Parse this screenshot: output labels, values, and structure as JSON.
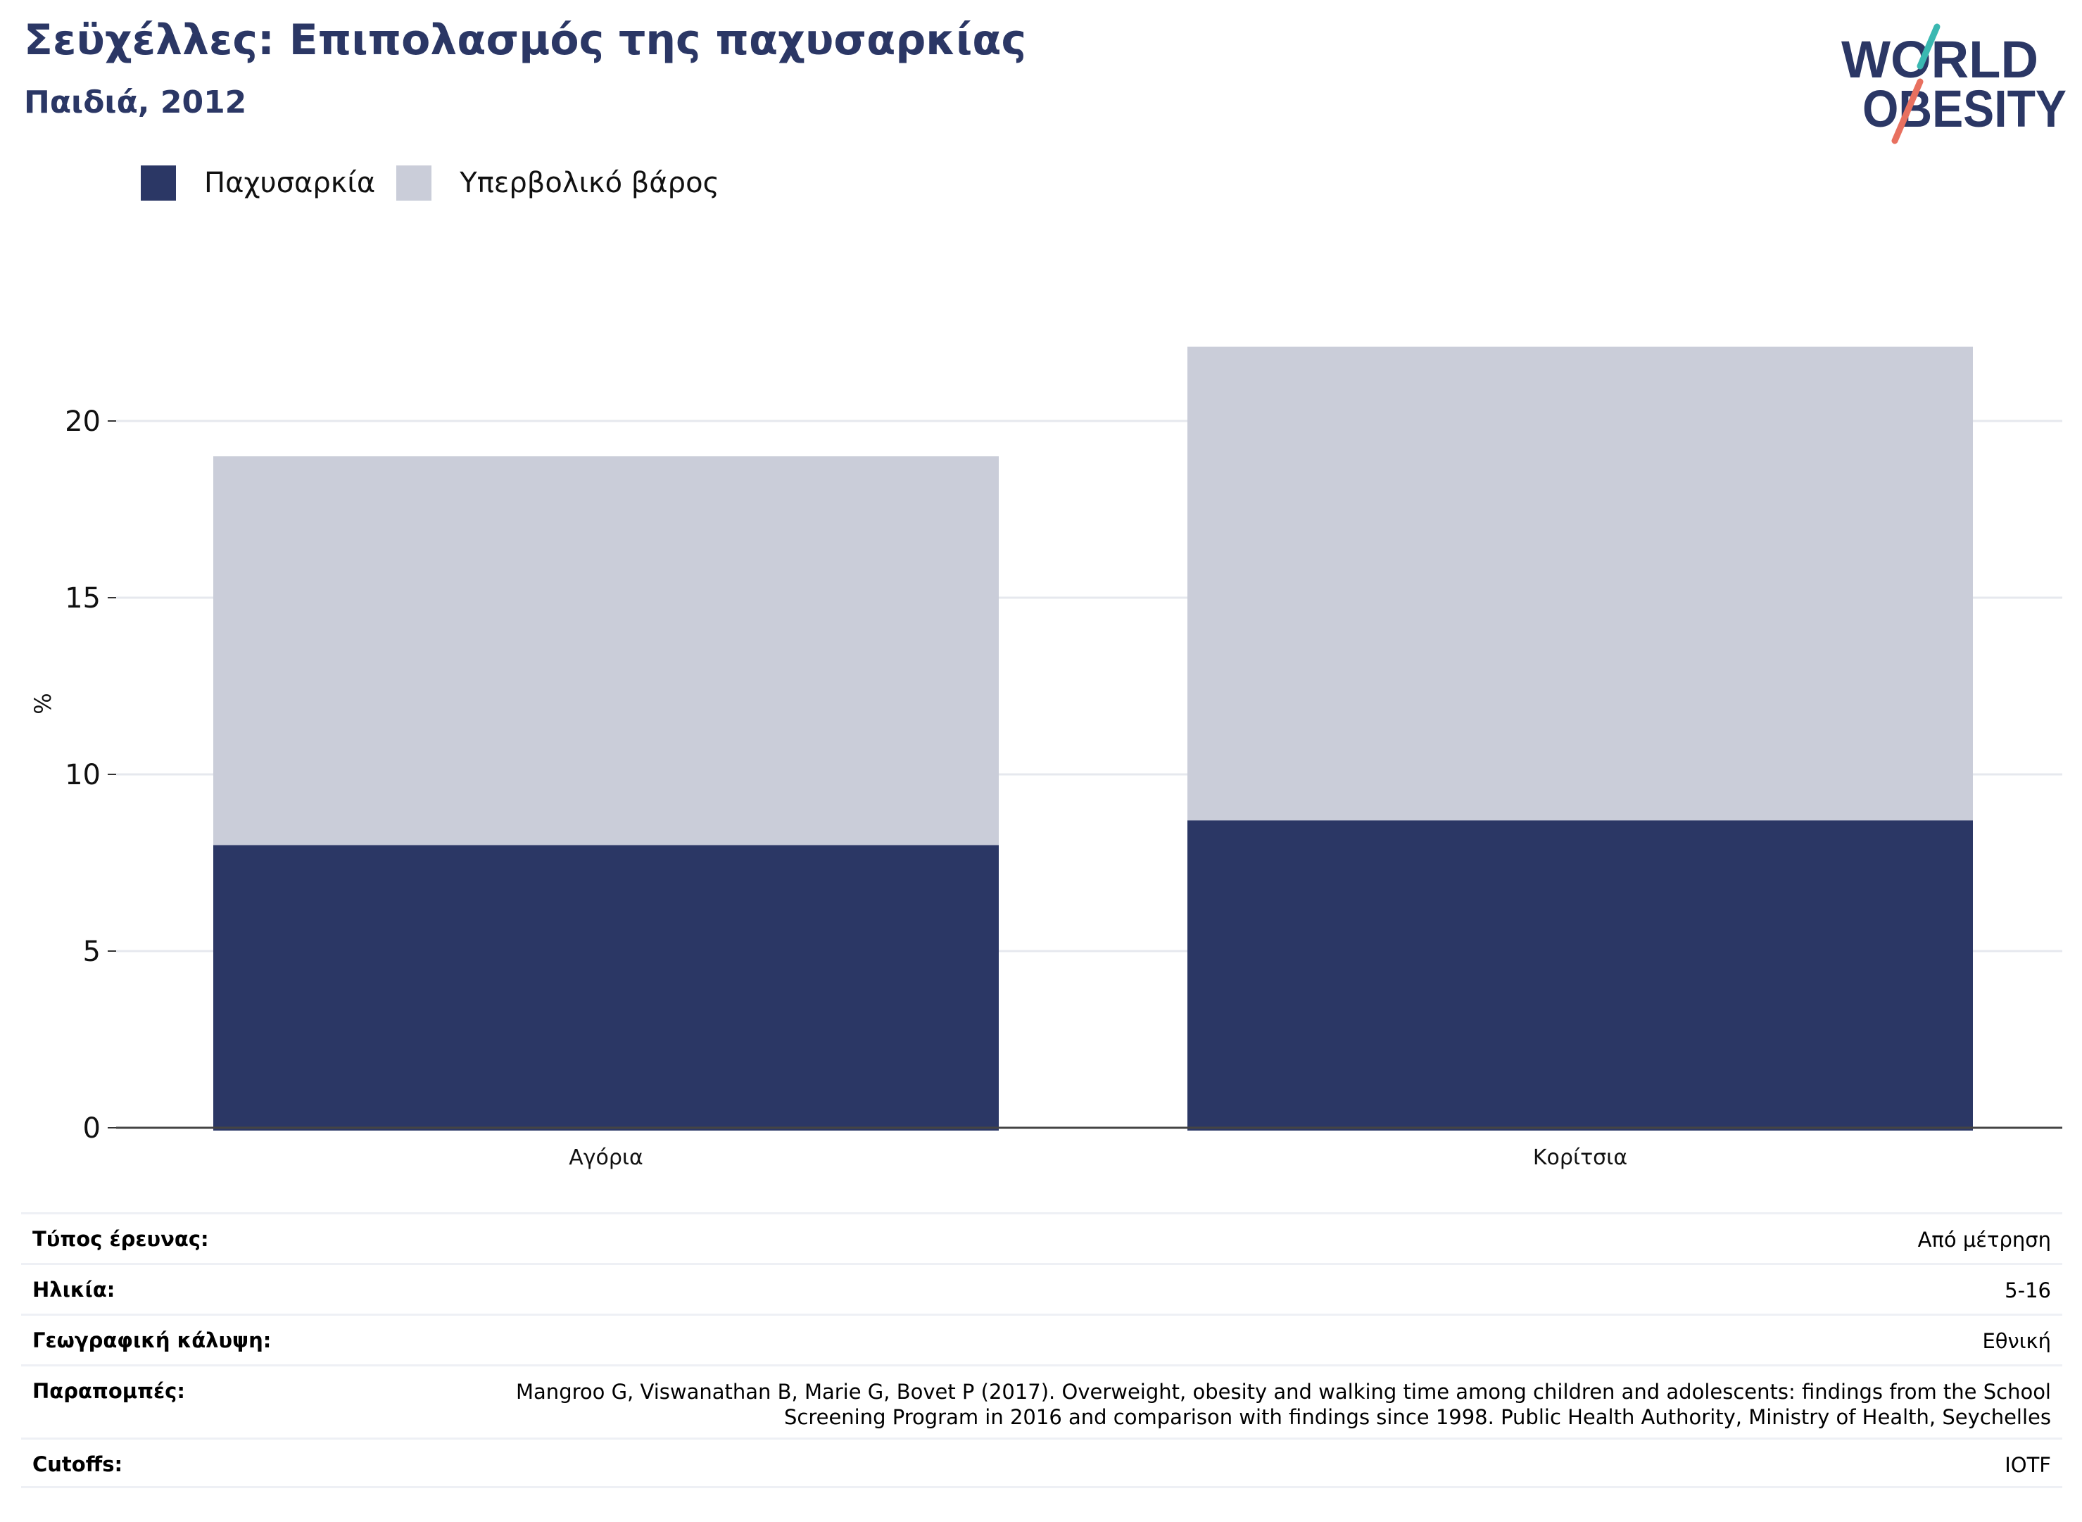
{
  "header": {
    "title": "Σεϋχέλλες: Επιπολασμός της παχυσαρκίας",
    "subtitle": "Παιδιά, 2012",
    "logo_line1": "WORLD",
    "logo_line2": "OBESITY"
  },
  "colors": {
    "obesity": "#2b3765",
    "overweight": "#cacdd9",
    "logo_navy": "#2b3765",
    "logo_teal": "#3ab8b1",
    "logo_coral": "#e8705f"
  },
  "chart_data": {
    "type": "bar",
    "stacked": true,
    "categories": [
      "Αγόρια",
      "Κορίτσια"
    ],
    "series": [
      {
        "name": "Παχυσαρκία",
        "values": [
          8.0,
          8.7
        ]
      },
      {
        "name": "Υπερβολικό βάρος",
        "values": [
          11.0,
          13.4
        ]
      }
    ],
    "ylabel": "%",
    "xlabel": "",
    "ylim": [
      0,
      25
    ],
    "yticks": [
      0,
      5,
      10,
      15,
      20
    ],
    "grid": true,
    "legend": "top-left"
  },
  "info": [
    {
      "key": "Τύπος έρευνας:",
      "value": "Από μέτρηση"
    },
    {
      "key": "Ηλικία:",
      "value": "5-16"
    },
    {
      "key": "Γεωγραφική κάλυψη:",
      "value": "Εθνική"
    },
    {
      "key": "Παραπομπές:",
      "value": "Mangroo G, Viswanathan B, Marie G, Bovet P (2017). Overweight, obesity and walking time among children and adolescents: findings from the School Screening Program in 2016 and comparison with findings since 1998. Public Health Authority, Ministry of Health, Seychelles"
    },
    {
      "key": "Cutoffs:",
      "value": "IOTF"
    }
  ]
}
